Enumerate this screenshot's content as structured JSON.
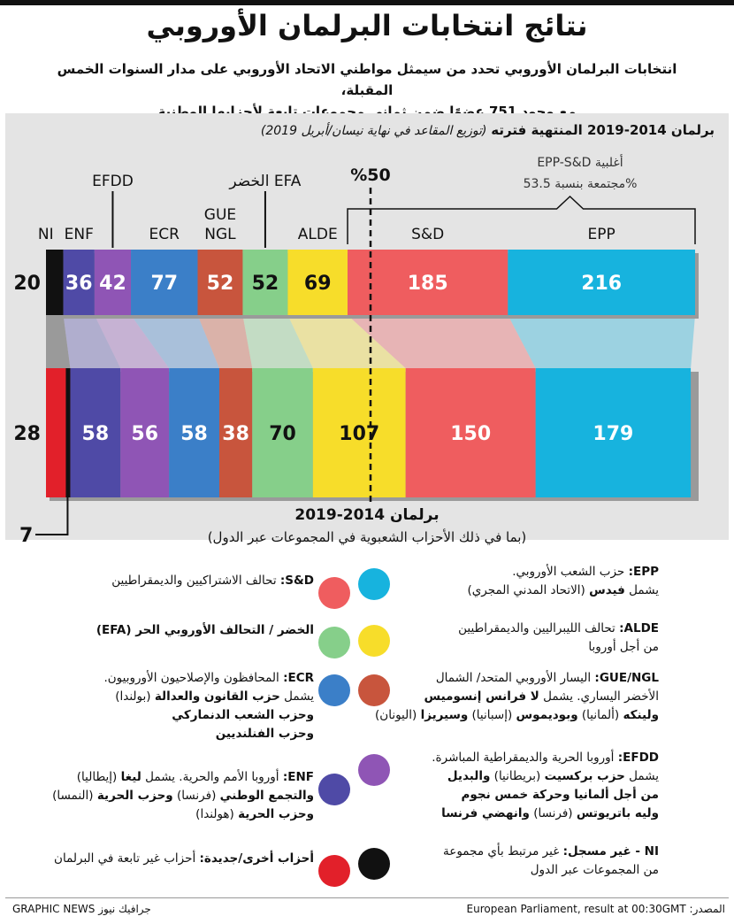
{
  "title": "نتائج انتخابات البرلمان الأوروبي",
  "subtitle_lines": [
    "انتخابات البرلمان الأوروبي تحدد من سيمثل مواطني الاتحاد الأوروبي على مدار السنوات الخمس المقبلة،",
    "مع وجود 751 عضوًا ضمن ثماني مجموعات تابعة لأحزابها الوطنية"
  ],
  "panel_title_bold": "برلمان 2014-2019 المنتهية فترته",
  "panel_title_note": "(توزيع المقاعد في نهاية نيسان/أبريل 2019)",
  "majority_label": "%50",
  "majority_note_lines": [
    "EPP-S&D أغلبية",
    "مجتمعة بنسبة 53.5%"
  ],
  "ni_extra_seats": "7",
  "lower_title": "برلمان 2014-2019",
  "lower_note": "(بما في ذلك الأحزاب الشعبوية في المجموعات عبر الدول)",
  "chart_data": [
    {
      "type": "bar",
      "title": "برلمان 2014-2019 المنتهية فترته",
      "categories": [
        "NI",
        "ENF",
        "EFDD",
        "ECR",
        "GUE NGL",
        "الخضر EFA",
        "ALDE",
        "S&D",
        "EPP"
      ],
      "values": [
        20,
        36,
        42,
        77,
        52,
        52,
        69,
        185,
        216
      ],
      "colors": [
        "#111111",
        "#4f4aa6",
        "#8f55b5",
        "#3b7fc8",
        "#c8553d",
        "#86cf8a",
        "#f7dd2a",
        "#ef5d5f",
        "#17b3de"
      ],
      "xlim": [
        0,
        751
      ]
    },
    {
      "type": "bar",
      "title": "برلمان 2014-2019",
      "categories": [
        "NI",
        "ENF",
        "EFDD",
        "ECR",
        "GUE NGL",
        "الخضر EFA",
        "ALDE",
        "S&D",
        "EPP"
      ],
      "values": [
        28,
        58,
        56,
        58,
        38,
        70,
        107,
        150,
        179
      ],
      "colors": [
        "#e2202a",
        "#4f4aa6",
        "#8f55b5",
        "#3b7fc8",
        "#c8553d",
        "#86cf8a",
        "#f7dd2a",
        "#ef5d5f",
        "#17b3de"
      ],
      "xlim": [
        0,
        751
      ]
    }
  ],
  "legend": [
    {
      "id": "epp",
      "color": "#17b3de",
      "lines": [
        [
          {
            "b": "EPP:"
          },
          {
            "t": " حزب الشعب الأوروبي."
          }
        ],
        [
          {
            "t": "يشمل "
          },
          {
            "b": "فيدس"
          },
          {
            "t": " (الاتحاد المدني المجري)"
          }
        ]
      ]
    },
    {
      "id": "sd",
      "color": "#ef5d5f",
      "lines": [
        [
          {
            "b": "S&D:"
          },
          {
            "t": " تحالف الاشتراكيين والديمقراطيين"
          }
        ]
      ]
    },
    {
      "id": "alde",
      "color": "#f7dd2a",
      "lines": [
        [
          {
            "b": "ALDE:"
          },
          {
            "t": " تحالف الليبراليين والديمقراطيين"
          }
        ],
        [
          {
            "t": "من أجل أوروبا"
          }
        ]
      ]
    },
    {
      "id": "greens",
      "color": "#86cf8a",
      "lines": [
        [
          {
            "b": "الخضر / التحالف الأوروبي الحر (EFA)"
          }
        ]
      ]
    },
    {
      "id": "gue",
      "color": "#c8553d",
      "lines": [
        [
          {
            "b": "GUE/NGL:"
          },
          {
            "t": " اليسار الأوروبي المتحد/ الشمال"
          }
        ],
        [
          {
            "t": "الأخضر اليساري. يشمل "
          },
          {
            "b": "لا فرانس إنسوميس"
          }
        ],
        [
          {
            "b": "ولينكه"
          },
          {
            "t": " (ألمانيا) "
          },
          {
            "b": "وبوديموس"
          },
          {
            "t": " (إسبانيا) "
          },
          {
            "b": "وسيريزا"
          },
          {
            "t": " (اليونان)"
          }
        ]
      ]
    },
    {
      "id": "ecr",
      "color": "#3b7fc8",
      "lines": [
        [
          {
            "b": "ECR:"
          },
          {
            "t": " المحافظون والإصلاحيون الأوروبيون."
          }
        ],
        [
          {
            "t": "يشمل "
          },
          {
            "b": "حزب القانون والعدالة"
          },
          {
            "t": " (بولندا)"
          }
        ],
        [
          {
            "b": "وحزب الشعب الدنماركي"
          }
        ],
        [
          {
            "b": "وحزب الفنلنديين"
          }
        ]
      ]
    },
    {
      "id": "efdd",
      "color": "#8f55b5",
      "lines": [
        [
          {
            "b": "EFDD:"
          },
          {
            "t": " أوروبا الحرية والديمقراطية المباشرة."
          }
        ],
        [
          {
            "t": "يشمل "
          },
          {
            "b": "حزب بركسيت"
          },
          {
            "t": " (بريطانيا) "
          },
          {
            "b": "والبديل"
          }
        ],
        [
          {
            "b": "من أجل ألمانيا وحركة خمس نجوم"
          }
        ],
        [
          {
            "b": "وليه باتريوتس"
          },
          {
            "t": " (فرنسا) "
          },
          {
            "b": "وانهضي فرنسا"
          }
        ]
      ]
    },
    {
      "id": "enf",
      "color": "#4f4aa6",
      "lines": [
        [
          {
            "b": "ENF:"
          },
          {
            "t": " أوروبا الأمم والحرية. يشمل "
          },
          {
            "b": "ليغا"
          },
          {
            "t": " (إيطاليا)"
          }
        ],
        [
          {
            "b": "والتجمع الوطني"
          },
          {
            "t": " (فرنسا) "
          },
          {
            "b": "وحزب الحرية"
          },
          {
            "t": " (النمسا)"
          }
        ],
        [
          {
            "b": "وحزب الحرية"
          },
          {
            "t": " (هولندا)"
          }
        ]
      ]
    },
    {
      "id": "ni",
      "color": "#111111",
      "lines": [
        [
          {
            "b": "NI - غير مسجل:"
          },
          {
            "t": " غير مرتبط بأي مجموعة"
          }
        ],
        [
          {
            "t": "من المجموعات عبر الدول"
          }
        ]
      ]
    },
    {
      "id": "others",
      "color": "#e2202a",
      "lines": [
        [
          {
            "b": "أحزاب أخرى/جديدة:"
          },
          {
            "t": " أحزاب غير تابعة في البرلمان"
          }
        ]
      ]
    }
  ],
  "source": "European Parliament, result at 00:30GMT :المصدر",
  "credit": "GRAPHIC NEWS جرافيك نيوز"
}
